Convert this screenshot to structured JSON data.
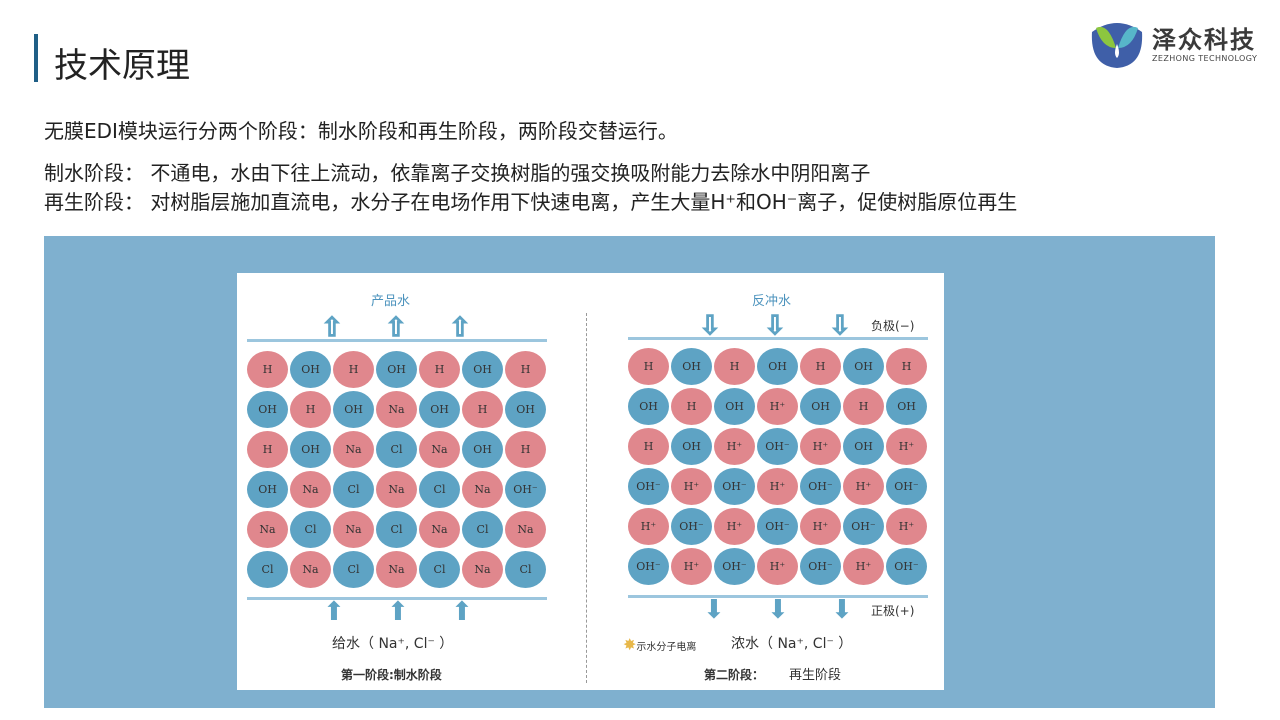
{
  "header": {
    "title": "技术原理",
    "logo_cn": "泽众科技",
    "logo_en": "ZEZHONG TECHNOLOGY"
  },
  "text": {
    "line1": "无膜EDI模块运行分两个阶段：制水阶段和再生阶段，两阶段交替运行。",
    "line2": "制水阶段： 不通电，水由下往上流动，依靠离子交换树脂的强交换吸附能力去除水中阴阳离子",
    "line3": "再生阶段： 对树脂层施加直流电，水分子在电场作用下快速电离，产生大量H⁺和OH⁻离子，促使树脂原位再生"
  },
  "diagram": {
    "left": {
      "top_label": "产品水",
      "bottom_label": "给水（ Na⁺, Cl⁻ ）",
      "caption": "第一阶段:制水阶段",
      "grid": [
        [
          "H",
          "OH",
          "H",
          "OH",
          "H",
          "OH",
          "H"
        ],
        [
          "OH",
          "H",
          "OH",
          "Na",
          "OH",
          "H",
          "OH"
        ],
        [
          "H",
          "OH",
          "Na",
          "Cl",
          "Na",
          "OH",
          "H"
        ],
        [
          "OH",
          "Na",
          "Cl",
          "Na",
          "Cl",
          "Na",
          "OH⁻"
        ],
        [
          "Na",
          "Cl",
          "Na",
          "Cl",
          "Na",
          "Cl",
          "Na"
        ],
        [
          "Cl",
          "Na",
          "Cl",
          "Na",
          "Cl",
          "Na",
          "Cl"
        ]
      ]
    },
    "right": {
      "top_label": "反冲水",
      "negative": "负极(−)",
      "positive": "正极(+)",
      "legend": "示水分子电离",
      "bottom_label": "浓水（ Na⁺, Cl⁻ ）",
      "caption": "第二阶段：",
      "caption2": "再生阶段",
      "grid": [
        [
          "H",
          "OH",
          "H",
          "OH",
          "H",
          "OH",
          "H"
        ],
        [
          "OH",
          "H",
          "OH",
          "H⁺",
          "OH",
          "H",
          "OH"
        ],
        [
          "H",
          "OH",
          "H⁺",
          "OH⁻",
          "H⁺",
          "OH",
          "H⁺"
        ],
        [
          "OH⁻",
          "H⁺",
          "OH⁻",
          "H⁺",
          "OH⁻",
          "H⁺",
          "OH⁻"
        ],
        [
          "H⁺",
          "OH⁻",
          "H⁺",
          "OH⁻",
          "H⁺",
          "OH⁻",
          "H⁺"
        ],
        [
          "OH⁻",
          "H⁺",
          "OH⁻",
          "H⁺",
          "OH⁻",
          "H⁺",
          "OH⁻"
        ]
      ]
    },
    "colors": {
      "cation": "#e0878d",
      "anion": "#5ea3c4",
      "frame": "#7fb0cf"
    }
  }
}
